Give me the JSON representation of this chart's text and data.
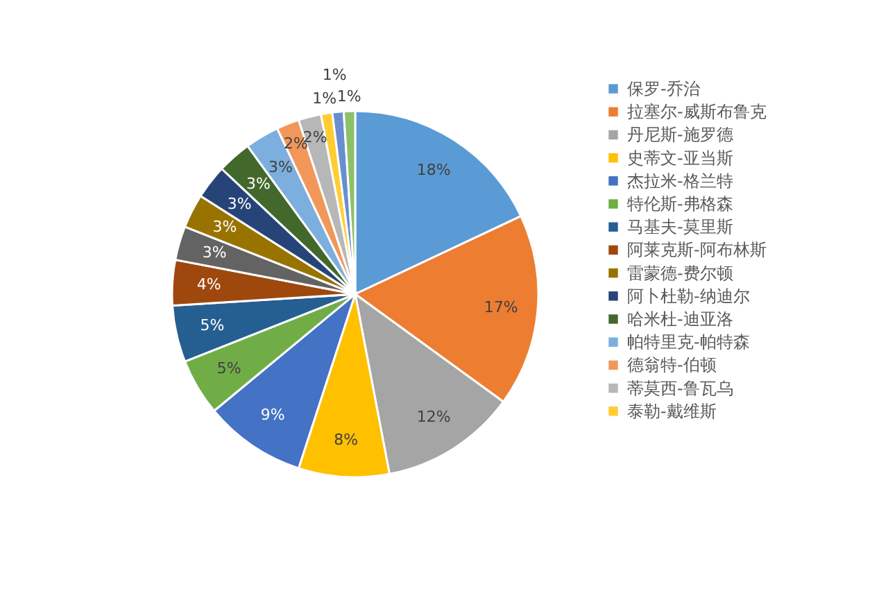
{
  "chart_data": {
    "type": "pie",
    "categories": [
      "保罗-乔治",
      "拉塞尔-威斯布鲁克",
      "丹尼斯-施罗德",
      "史蒂文-亚当斯",
      "杰拉米-格兰特",
      "特伦斯-弗格森",
      "马基夫-莫里斯",
      "阿莱克斯-阿布林斯",
      null,
      "雷蒙德-费尔顿",
      "阿卜杜勒-纳迪尔",
      "哈米杜-迪亚洛",
      "帕特里克-帕特森",
      "德翁特-伯顿",
      "蒂莫西-鲁瓦乌",
      "泰勒-戴维斯",
      null,
      null
    ],
    "values": [
      18,
      17,
      12,
      8,
      9,
      5,
      5,
      4,
      3,
      3,
      3,
      3,
      3,
      2,
      2,
      1,
      1,
      1
    ],
    "value_labels": [
      "18%",
      "17%",
      "12%",
      "8%",
      "9%",
      "5%",
      "5%",
      "4%",
      "3%",
      "3%",
      "3%",
      "3%",
      "3%",
      "2%",
      "2%",
      "1%",
      "1%",
      "1%"
    ],
    "colors": [
      "#5b9bd5",
      "#ed7d31",
      "#a5a5a5",
      "#ffc000",
      "#4472c4",
      "#70ad47",
      "#255e91",
      "#9e480e",
      "#636363",
      "#997300",
      "#264478",
      "#43682b",
      "#7cafdd",
      "#f1975a",
      "#b7b7b7",
      "#ffcd33",
      "#698ed0",
      "#8cc168"
    ],
    "legend": "right"
  }
}
